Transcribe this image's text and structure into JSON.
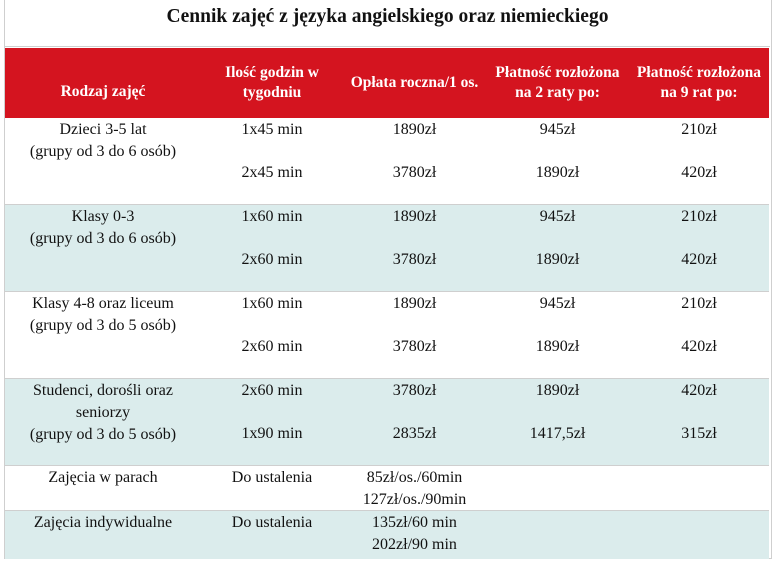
{
  "title": "Cennik zajęć z języka angielskiego oraz niemieckiego",
  "headers": [
    "Rodzaj zajęć",
    "Ilość godzin w tygodniu",
    "Opłata roczna/1 os.",
    "Płatność rozłożona na 2 raty po:",
    "Płatność rozłożona na 9 rat po:"
  ],
  "rows": [
    {
      "type_lines": [
        "Dzieci 3-5 lat",
        "(grupy od 3 do 6 osób)"
      ],
      "hours": [
        "1x45 min",
        "2x45 min"
      ],
      "annual": [
        "1890zł",
        "3780zł"
      ],
      "two": [
        "945zł",
        "1890zł"
      ],
      "nine": [
        "210zł",
        "420zł"
      ]
    },
    {
      "type_lines": [
        "Klasy 0-3",
        "(grupy od 3 do 6 osób)"
      ],
      "hours": [
        "1x60 min",
        "2x60 min"
      ],
      "annual": [
        "1890zł",
        "3780zł"
      ],
      "two": [
        "945zł",
        "1890zł"
      ],
      "nine": [
        "210zł",
        "420zł"
      ]
    },
    {
      "type_lines": [
        "Klasy 4-8 oraz liceum",
        "(grupy od 3 do 5 osób)"
      ],
      "hours": [
        "1x60 min",
        "2x60 min"
      ],
      "annual": [
        "1890zł",
        "3780zł"
      ],
      "two": [
        "945zł",
        "1890zł"
      ],
      "nine": [
        "210zł",
        "420zł"
      ]
    },
    {
      "type_lines": [
        "Studenci, dorośli oraz",
        "seniorzy",
        "(grupy od 3 do 5 osób)"
      ],
      "hours": [
        "2x60 min",
        "1x90 min"
      ],
      "annual": [
        "3780zł",
        "2835zł"
      ],
      "two": [
        "1890zł",
        "1417,5zł"
      ],
      "nine": [
        "420zł",
        "315zł"
      ]
    },
    {
      "type_lines": [
        "Zajęcia w parach"
      ],
      "hours": [
        "Do ustalenia"
      ],
      "annual": [
        "85zł/os./60min",
        "127zł/os./90min"
      ]
    },
    {
      "type_lines": [
        "Zajęcia indywidualne"
      ],
      "hours": [
        "Do ustalenia"
      ],
      "annual": [
        "135zł/60 min",
        "202zł/90 min"
      ]
    }
  ]
}
